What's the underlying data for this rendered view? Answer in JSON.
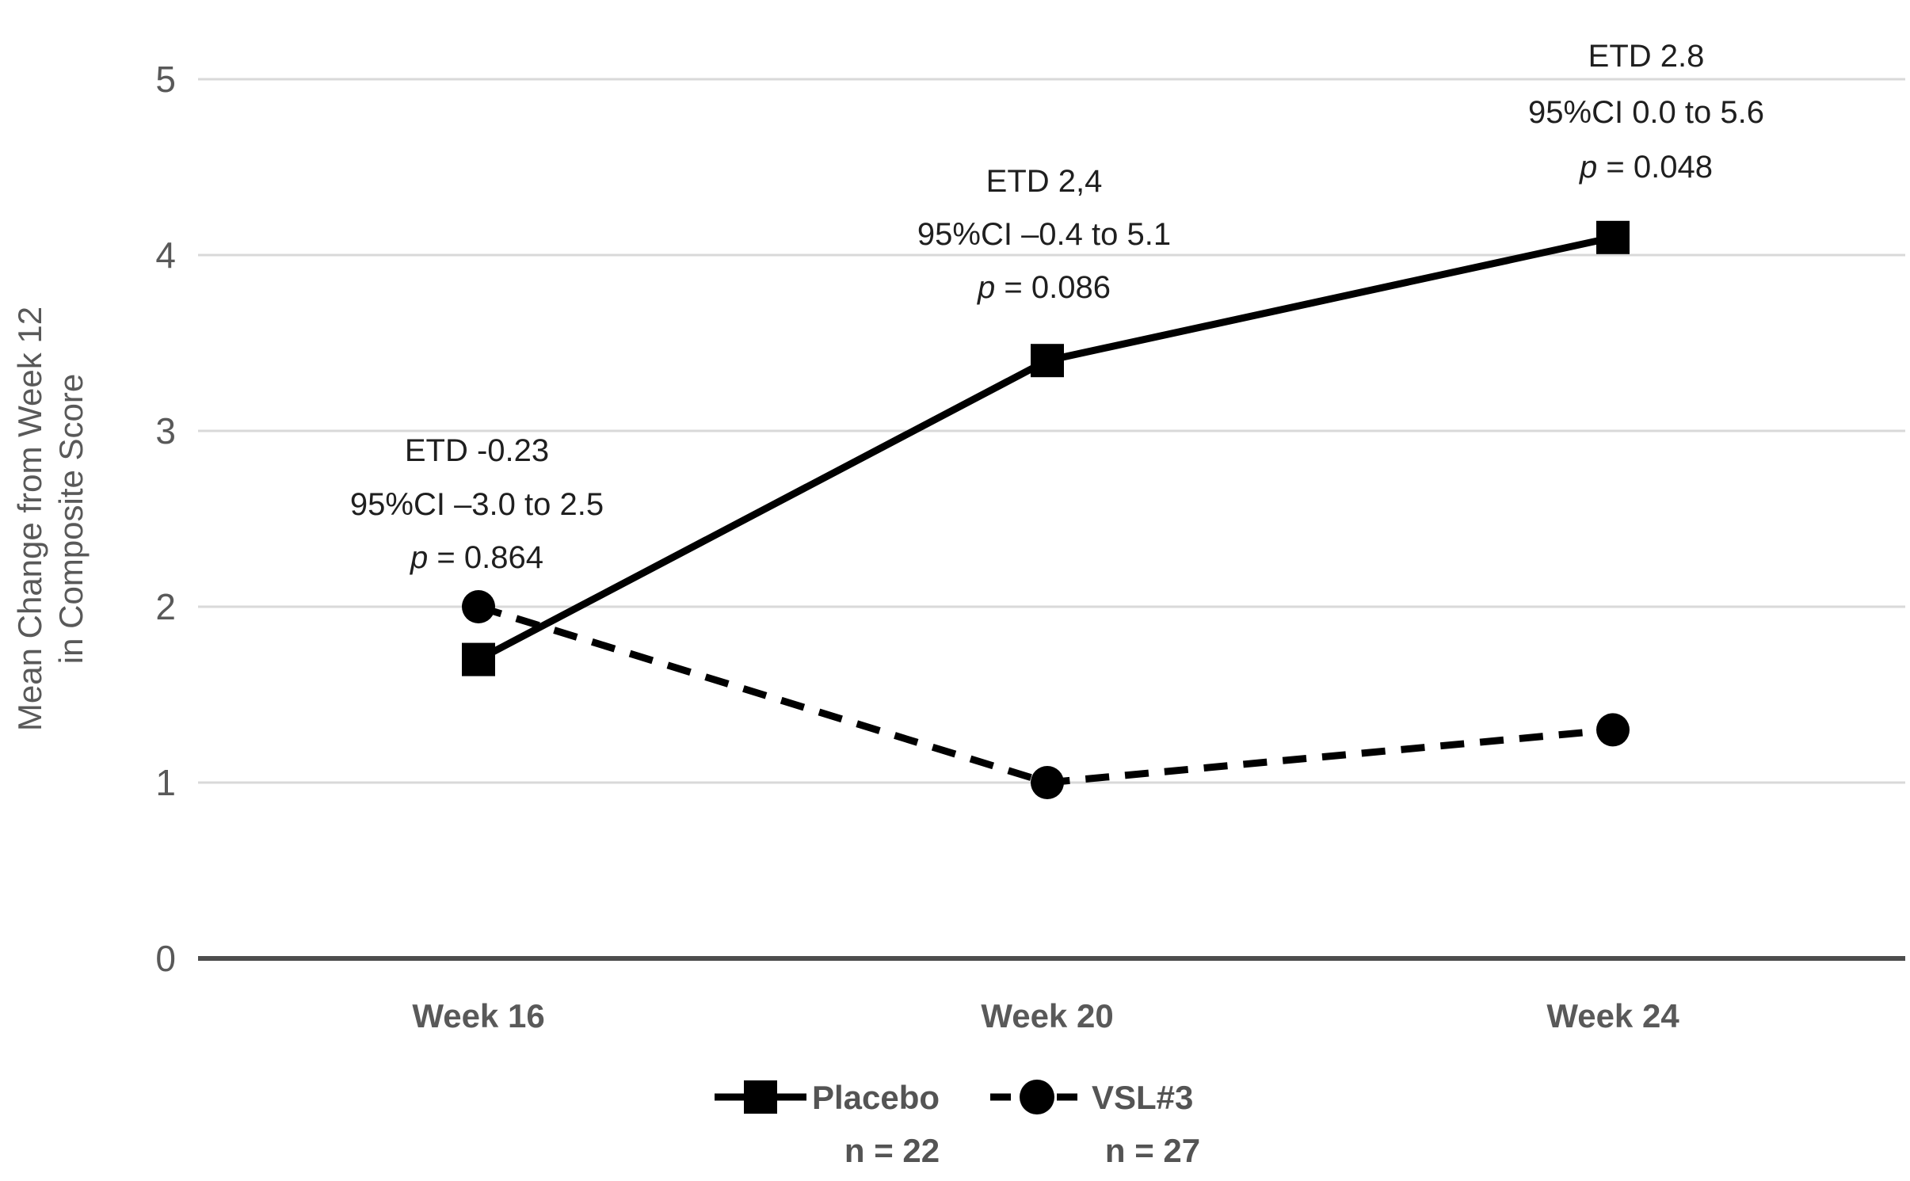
{
  "figure": {
    "y_axis_title_line1": "Mean Change from Week 12",
    "y_axis_title_line2": "in Composite Score"
  },
  "chart_data": {
    "type": "line",
    "title": "",
    "xlabel": "",
    "ylabel": "Mean Change from Week 12 in Composite Score",
    "categories": [
      "Week 16",
      "Week 20",
      "Week 24"
    ],
    "series": [
      {
        "name": "Placebo",
        "n_label": "n = 22",
        "values": [
          1.7,
          3.4,
          4.1
        ],
        "line_style": "solid",
        "marker": "square",
        "color": "#000000"
      },
      {
        "name": "VSL#3",
        "n_label": "n = 27",
        "values": [
          2.0,
          1.0,
          1.3
        ],
        "line_style": "dashed",
        "marker": "circle",
        "color": "#000000"
      }
    ],
    "ylim": [
      0,
      5
    ],
    "y_ticks": [
      "0",
      "1",
      "2",
      "3",
      "4",
      "5"
    ],
    "grid": true,
    "legend_position": "bottom-center",
    "annotations": [
      {
        "target": "Week 16",
        "lines": [
          "ETD -0.23",
          "95%CI –3.0 to 2.5",
          "p = 0.864"
        ]
      },
      {
        "target": "Week 20",
        "lines": [
          "ETD 2,4",
          "95%CI –0.4 to 5.1",
          "p = 0.086"
        ]
      },
      {
        "target": "Week 24",
        "lines": [
          "ETD 2.8",
          "95%CI 0.0 to 5.6",
          "p = 0.048"
        ]
      }
    ],
    "colors": {
      "series": "#000000",
      "gridline": "#d9d9d9",
      "axis_line": "#4d4d4d",
      "axis_text": "#595959",
      "annotation_text": "#1f1f1f"
    }
  }
}
